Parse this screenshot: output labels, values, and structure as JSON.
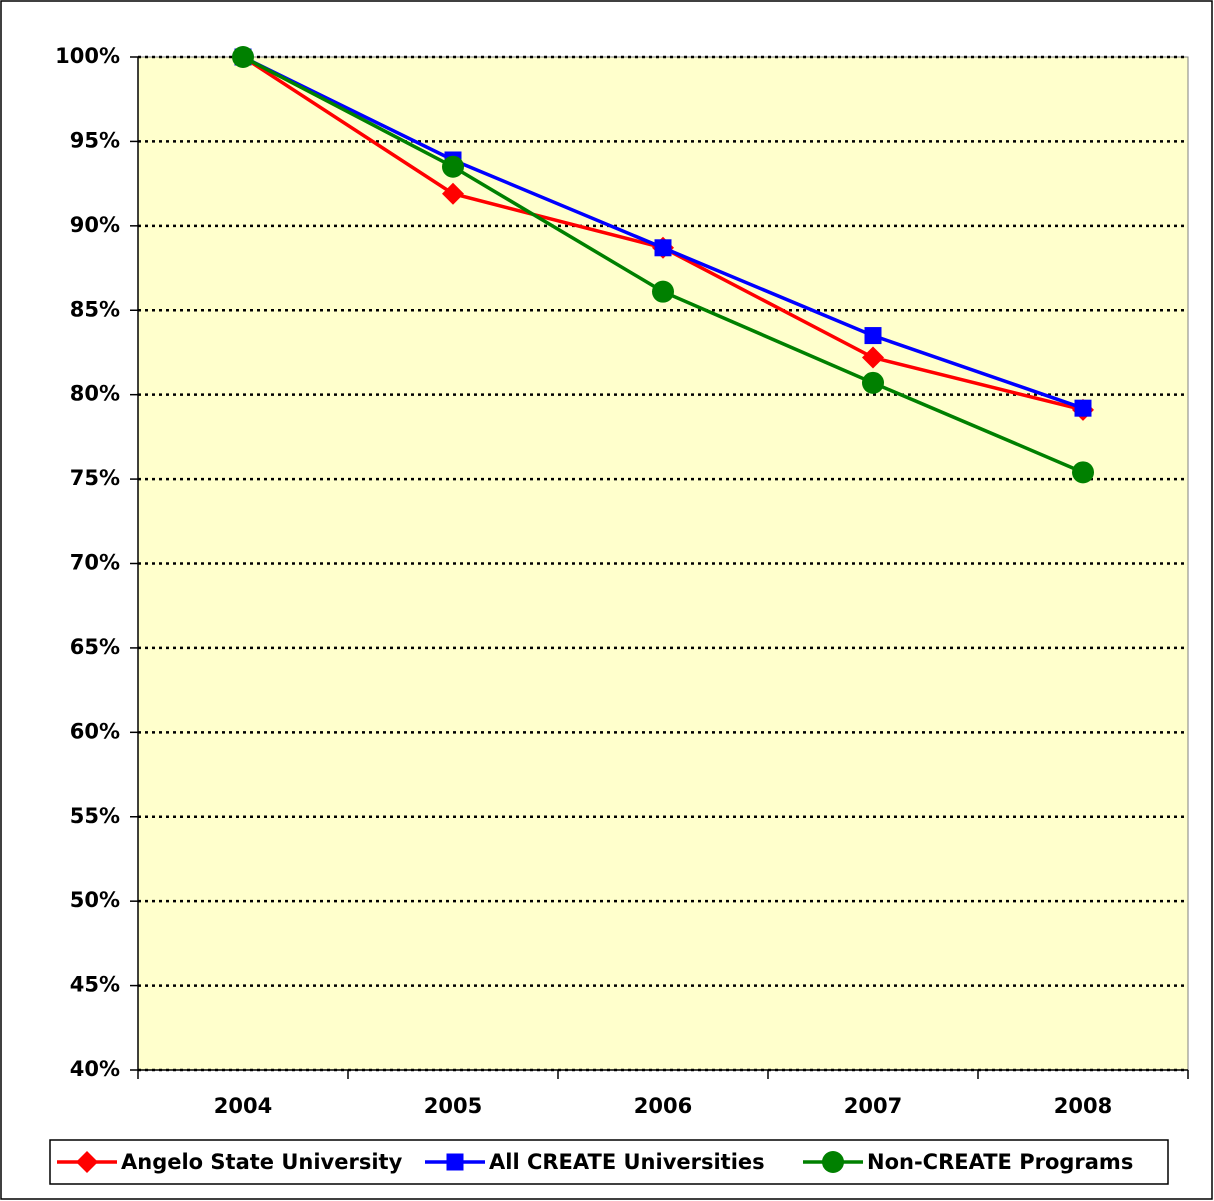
{
  "chart_data": {
    "type": "line",
    "categories": [
      "2004",
      "2005",
      "2006",
      "2007",
      "2008"
    ],
    "series": [
      {
        "name": "Angelo State University",
        "color": "#ff0000",
        "marker": "diamond",
        "values": [
          100,
          91.9,
          88.7,
          82.2,
          79.1
        ]
      },
      {
        "name": "All CREATE Universities",
        "color": "#0000ff",
        "marker": "square",
        "values": [
          100,
          93.9,
          88.7,
          83.5,
          79.2
        ]
      },
      {
        "name": "Non-CREATE Programs",
        "color": "#008000",
        "marker": "circle",
        "values": [
          100,
          93.5,
          86.1,
          80.7,
          75.4
        ]
      }
    ],
    "ylim": [
      40,
      100
    ],
    "yticks": [
      {
        "value": 40,
        "label": "40%"
      },
      {
        "value": 45,
        "label": "45%"
      },
      {
        "value": 50,
        "label": "50%"
      },
      {
        "value": 55,
        "label": "55%"
      },
      {
        "value": 60,
        "label": "60%"
      },
      {
        "value": 65,
        "label": "65%"
      },
      {
        "value": 70,
        "label": "70%"
      },
      {
        "value": 75,
        "label": "75%"
      },
      {
        "value": 80,
        "label": "80%"
      },
      {
        "value": 85,
        "label": "85%"
      },
      {
        "value": 90,
        "label": "90%"
      },
      {
        "value": 95,
        "label": "95%"
      },
      {
        "value": 100,
        "label": "100%"
      }
    ],
    "grid": true,
    "legend": "bottom",
    "plot_background": "#ffffcc"
  }
}
